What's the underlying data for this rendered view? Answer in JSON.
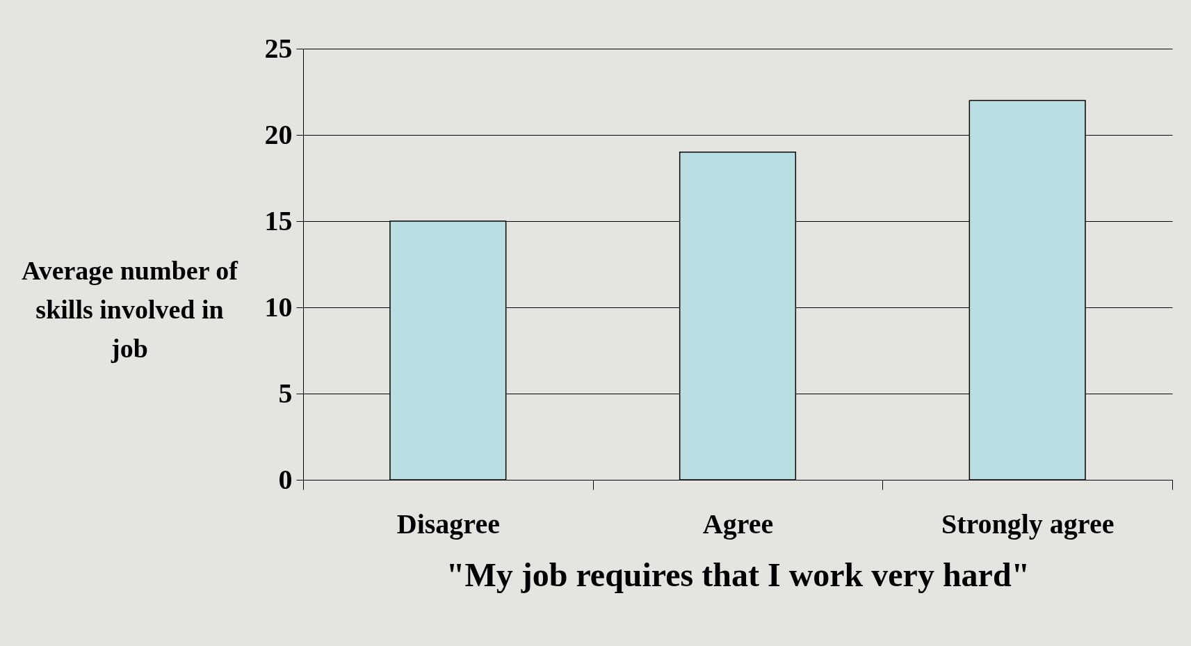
{
  "chart_data": {
    "type": "bar",
    "xlabel": "\"My job requires that I work very hard\"",
    "ylabel": "Average number of skills involved in job",
    "categories": [
      "Disagree",
      "Agree",
      "Strongly agree"
    ],
    "values": [
      15,
      19,
      22
    ],
    "color": "#b9dfe2",
    "ylim": [
      0,
      25
    ],
    "yticks": [
      0,
      5,
      10,
      15,
      20,
      25
    ],
    "grid": "y"
  }
}
